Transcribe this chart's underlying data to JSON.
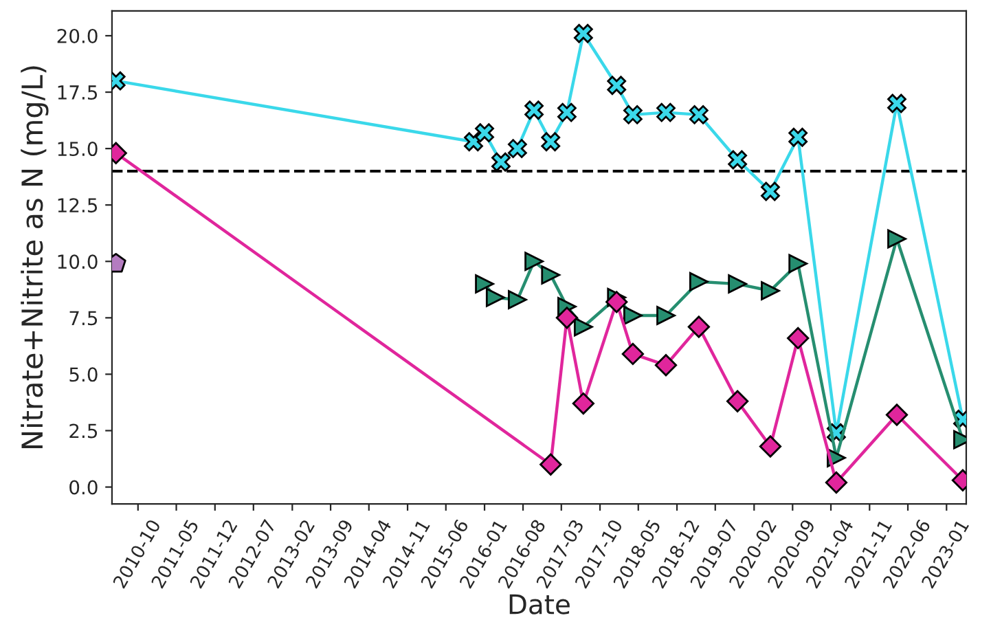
{
  "chart_data": {
    "type": "line",
    "xlabel": "Date",
    "ylabel": "Nitrate+Nitrite as N (mg/L)",
    "xlim": [
      "2010-05-10",
      "2023-04-20"
    ],
    "ylim": [
      -0.75,
      21.1
    ],
    "xticks": [
      "2010-10",
      "2011-05",
      "2011-12",
      "2012-07",
      "2013-02",
      "2013-09",
      "2014-04",
      "2014-11",
      "2015-06",
      "2016-01",
      "2016-08",
      "2017-03",
      "2017-10",
      "2018-05",
      "2018-12",
      "2019-07",
      "2020-02",
      "2020-09",
      "2021-04",
      "2021-11",
      "2022-06",
      "2023-01"
    ],
    "yticks": [
      {
        "value": 0,
        "label": "0.0"
      },
      {
        "value": 2.5,
        "label": "2.5"
      },
      {
        "value": 5,
        "label": "5.0"
      },
      {
        "value": 7.5,
        "label": "7.5"
      },
      {
        "value": 10,
        "label": "10.0"
      },
      {
        "value": 12.5,
        "label": "12.5"
      },
      {
        "value": 15,
        "label": "15.0"
      },
      {
        "value": 17.5,
        "label": "17.5"
      },
      {
        "value": 20,
        "label": "20.0"
      }
    ],
    "grid": false,
    "legend": false,
    "ref_lines": [
      {
        "axis": "y",
        "value": 14.0,
        "color": "#000000",
        "line_style": "dashed"
      }
    ],
    "series": [
      {
        "color": "#3ad8ea",
        "marker": "cross",
        "x": [
          "2010-06-01",
          "2015-11-01",
          "2016-01-01",
          "2016-04-01",
          "2016-07-01",
          "2016-10-01",
          "2017-01-01",
          "2017-04-01",
          "2017-07-01",
          "2018-01-01",
          "2018-04-01",
          "2018-10-01",
          "2019-04-01",
          "2019-11-01",
          "2020-05-01",
          "2020-10-01",
          "2021-05-01",
          "2022-04-01",
          "2023-04-01"
        ],
        "values": [
          18.0,
          15.3,
          15.7,
          14.4,
          15.0,
          16.7,
          15.3,
          16.6,
          20.1,
          17.8,
          16.5,
          16.6,
          16.5,
          14.5,
          13.1,
          15.5,
          2.4,
          17.0,
          3.0
        ]
      },
      {
        "color": "#268e70",
        "marker": "triangle",
        "x": [
          "2016-01-01",
          "2016-03-01",
          "2016-07-01",
          "2016-10-01",
          "2017-01-01",
          "2017-04-01",
          "2017-07-01",
          "2018-01-01",
          "2018-04-01",
          "2018-10-01",
          "2019-04-01",
          "2019-11-01",
          "2020-05-01",
          "2020-10-01",
          "2021-05-01",
          "2022-04-01",
          "2023-04-01"
        ],
        "values": [
          9.0,
          8.4,
          8.3,
          10.0,
          9.4,
          8.0,
          7.1,
          8.4,
          7.6,
          7.6,
          9.1,
          9.0,
          8.7,
          9.9,
          1.3,
          11.0,
          2.1
        ]
      },
      {
        "color": "#e0269c",
        "marker": "diamond",
        "x": [
          "2010-06-01",
          "2017-01-01",
          "2017-04-01",
          "2017-07-01",
          "2018-01-01",
          "2018-04-01",
          "2018-10-01",
          "2019-04-01",
          "2019-11-01",
          "2020-05-01",
          "2020-10-01",
          "2021-05-01",
          "2022-04-01",
          "2023-04-01"
        ],
        "values": [
          14.8,
          1.0,
          7.5,
          3.7,
          8.2,
          5.9,
          5.4,
          7.1,
          3.8,
          1.8,
          6.6,
          0.2,
          3.2,
          0.3
        ]
      },
      {
        "type": "scatter",
        "color": "#b47cc0",
        "x": [
          "2010-06-01"
        ],
        "values": [
          9.9
        ]
      }
    ]
  }
}
